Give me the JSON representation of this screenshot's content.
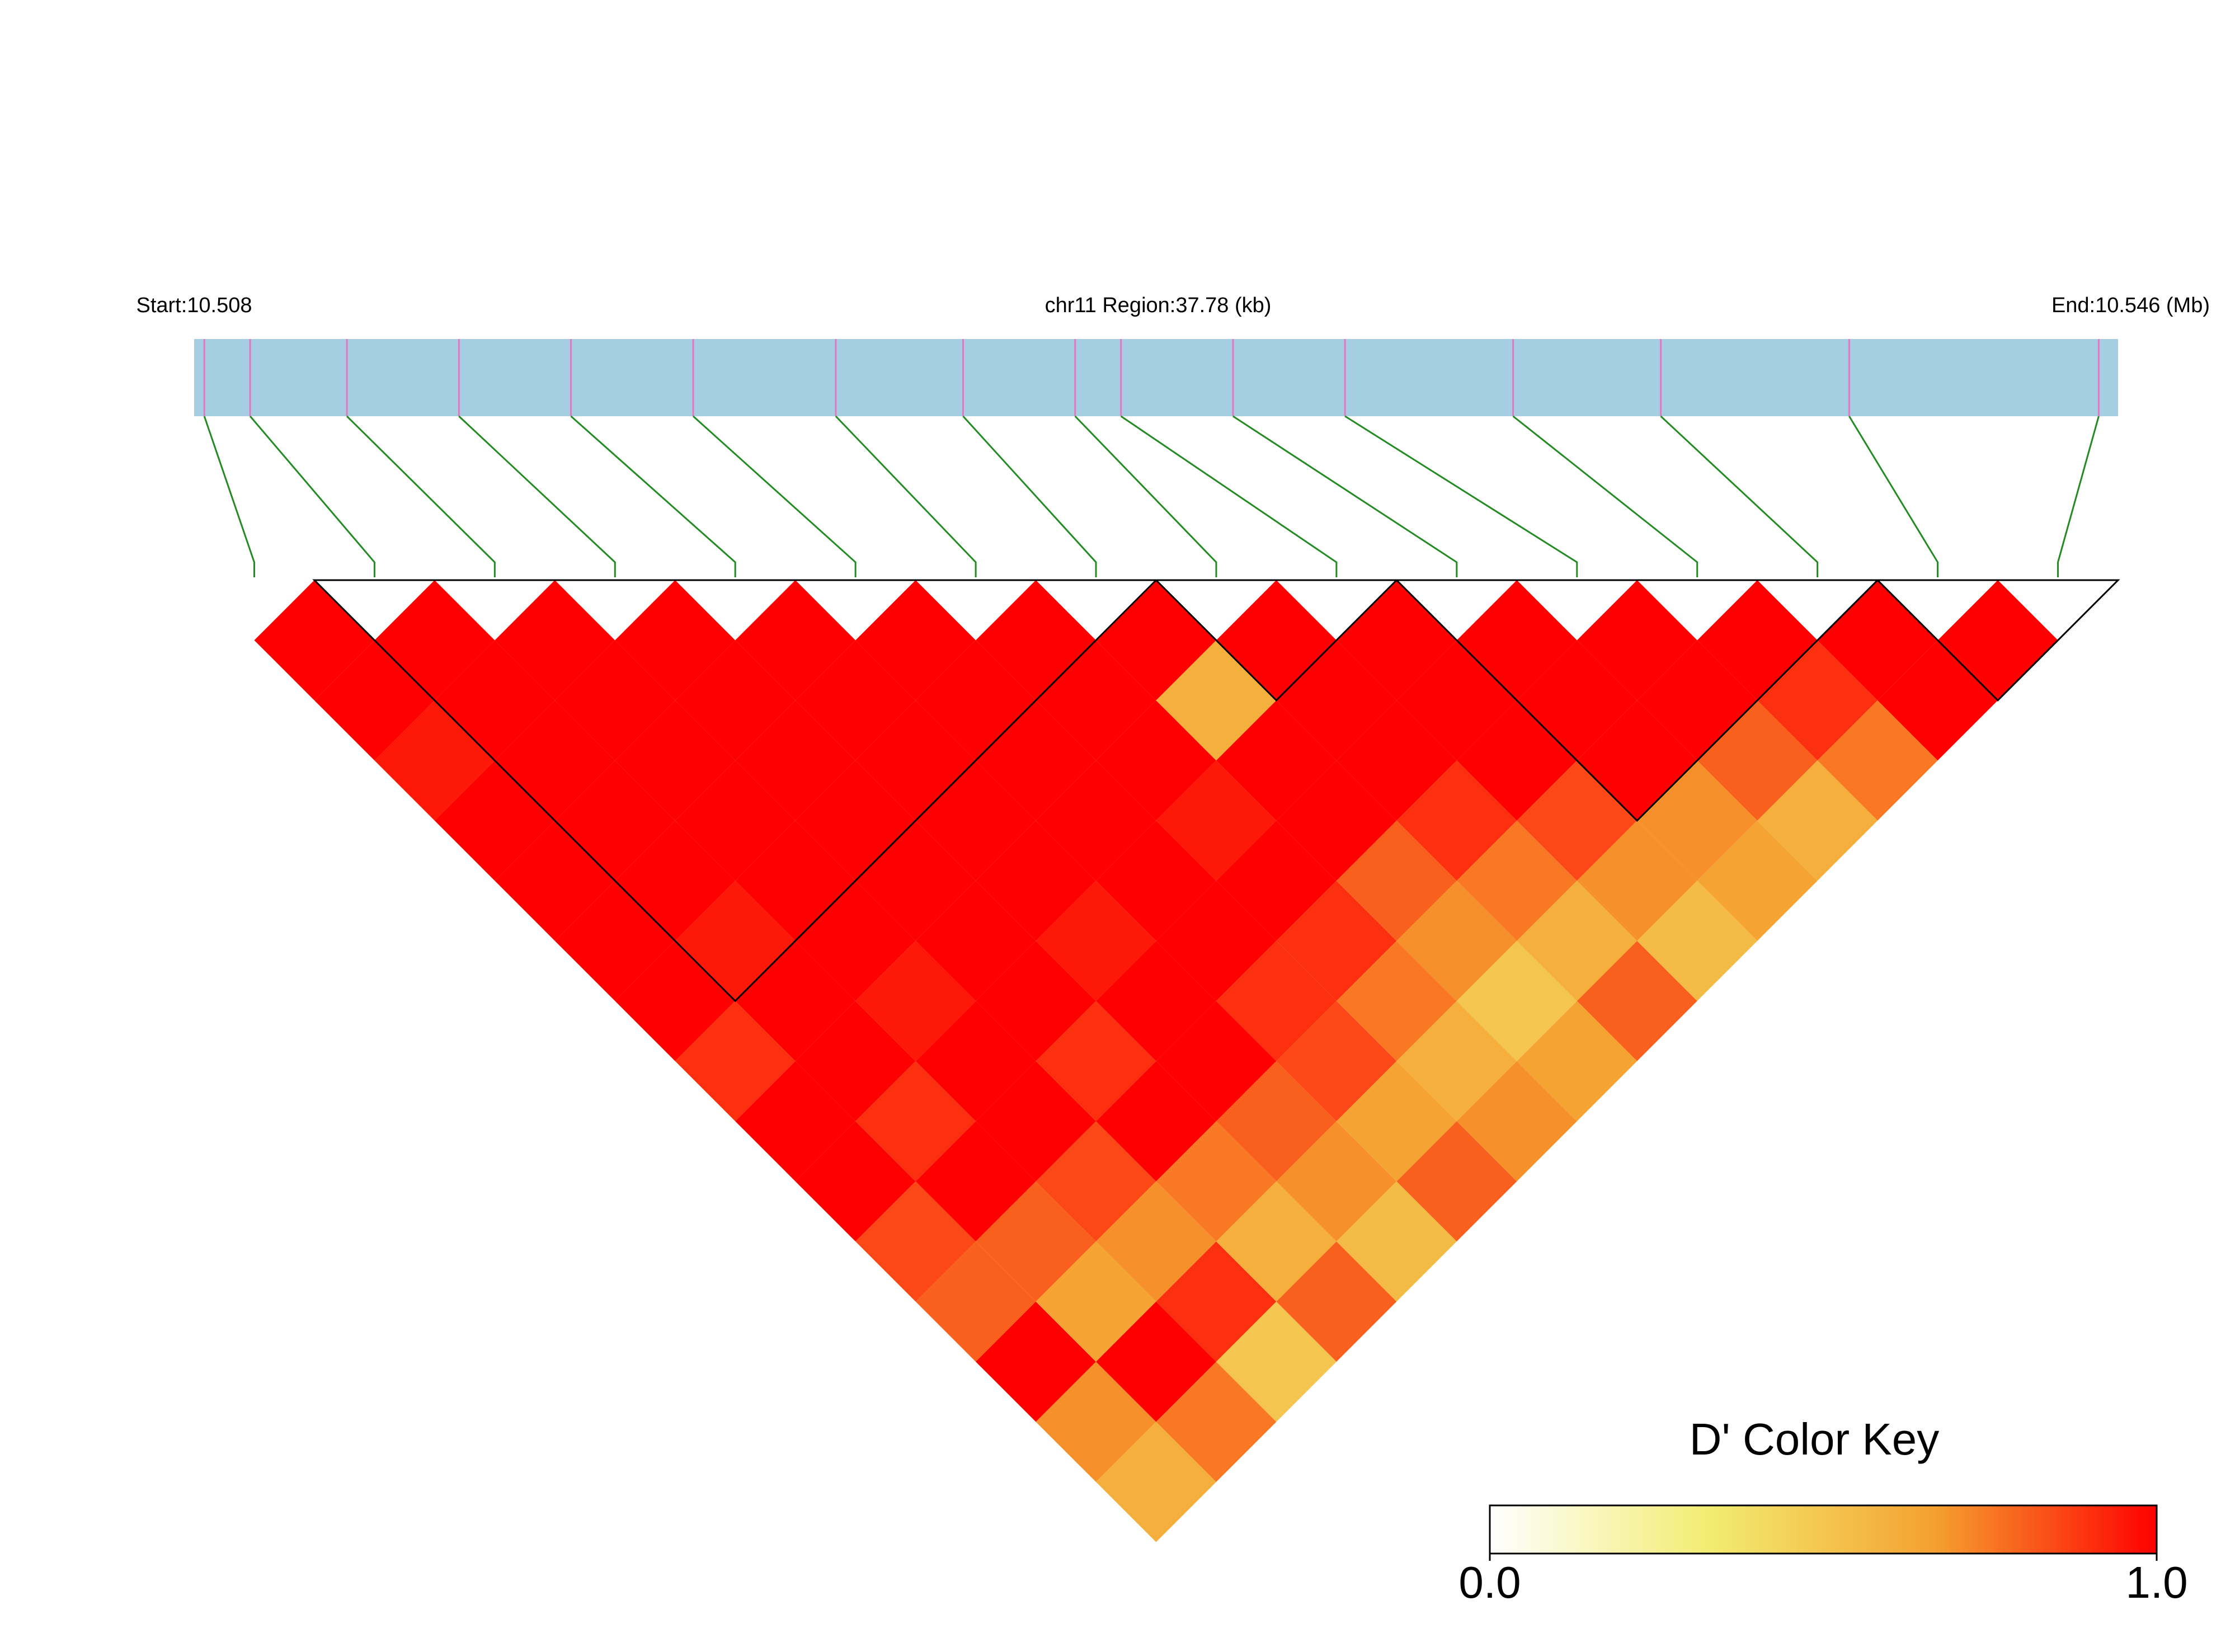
{
  "chart_data": {
    "type": "ld_heatmap",
    "start_label": "Start:10.508",
    "region_label": "chr11 Region:37.78 (kb)",
    "end_label": "End:10.546 (Mb)",
    "xlim": [
      0,
      37.78
    ],
    "snp_positions": [
      0.2,
      1.1,
      3.0,
      5.2,
      7.4,
      9.8,
      12.6,
      15.1,
      17.3,
      18.2,
      20.4,
      22.6,
      25.9,
      28.8,
      32.5,
      37.4
    ],
    "d_prime": [
      [
        1,
        1,
        0.95,
        1,
        1,
        1,
        1,
        0.9,
        1,
        1,
        0.85,
        0.8,
        1,
        0.7,
        0.6
      ],
      [
        1,
        1,
        1,
        1,
        1,
        0.95,
        1,
        1,
        0.9,
        1,
        0.8,
        0.65,
        1,
        0.75
      ],
      [
        1,
        1,
        1,
        1,
        1,
        1,
        0.95,
        1,
        1,
        0.85,
        0.7,
        0.9,
        0.5
      ],
      [
        1,
        1,
        1,
        1,
        1,
        1,
        1,
        0.9,
        1,
        0.75,
        0.6,
        0.8
      ],
      [
        1,
        1,
        1,
        1,
        1,
        0.95,
        1,
        1,
        0.8,
        0.7,
        0.55
      ],
      [
        1,
        1,
        1,
        1,
        1,
        1,
        0.9,
        0.85,
        0.65,
        0.8
      ],
      [
        1,
        1,
        1,
        0.95,
        1,
        0.9,
        0.75,
        0.6,
        0.7
      ],
      [
        1,
        0.6,
        1,
        1,
        0.8,
        0.7,
        0.5,
        0.65
      ],
      [
        1,
        1,
        1,
        0.9,
        0.75,
        0.6,
        0.8
      ],
      [
        1,
        1,
        1,
        0.85,
        0.7,
        0.55
      ],
      [
        1,
        1,
        1,
        0.7,
        0.65
      ],
      [
        1,
        1,
        0.8,
        0.6
      ],
      [
        1,
        0.9,
        0.75
      ],
      [
        1,
        1
      ],
      [
        1
      ]
    ],
    "blocks": [
      [
        1,
        7
      ],
      [
        8,
        9
      ],
      [
        10,
        13
      ],
      [
        14,
        15
      ]
    ],
    "key_title": "D' Color Key",
    "key_ticks": [
      {
        "value": 0,
        "label": "0.0"
      },
      {
        "value": 1,
        "label": "1.0"
      }
    ],
    "colors": [
      "#ffffff",
      "#f2ec70",
      "#f5a030",
      "#ff0000"
    ],
    "bar_color": "#a6cee3",
    "snp_line_color": "#e377c2",
    "connector_color": "#228b22"
  }
}
